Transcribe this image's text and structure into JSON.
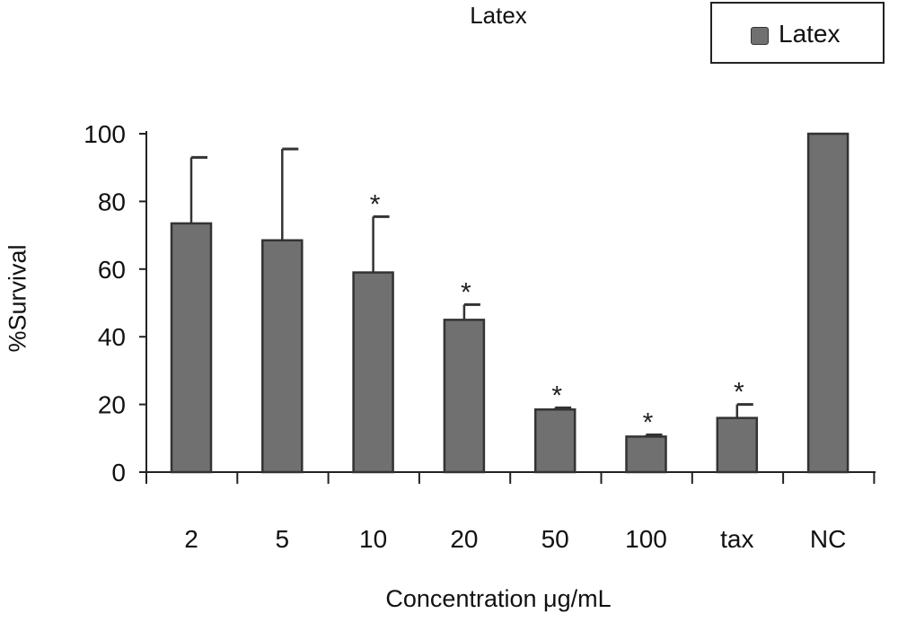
{
  "chart_data": {
    "type": "bar",
    "title": "Latex",
    "xlabel": "Concentration μg/mL",
    "ylabel": "%Survival",
    "ylim": [
      0,
      100
    ],
    "yticks": [
      0,
      20,
      40,
      60,
      80,
      100
    ],
    "grid": false,
    "legend": {
      "position": "top-right",
      "entries": [
        "Latex"
      ]
    },
    "categories": [
      "2",
      "5",
      "10",
      "20",
      "50",
      "100",
      "tax",
      "NC"
    ],
    "series": [
      {
        "name": "Latex",
        "color": "#707070",
        "values": [
          73.5,
          68.5,
          59,
          45,
          18.5,
          10.5,
          16,
          100
        ],
        "error": [
          19.5,
          27,
          16.5,
          4.5,
          0.5,
          0.5,
          4,
          0
        ]
      }
    ],
    "annotations": [
      {
        "category": "10",
        "text": "*"
      },
      {
        "category": "20",
        "text": "*"
      },
      {
        "category": "50",
        "text": "*"
      },
      {
        "category": "100",
        "text": "*"
      },
      {
        "category": "tax",
        "text": "*"
      }
    ]
  }
}
